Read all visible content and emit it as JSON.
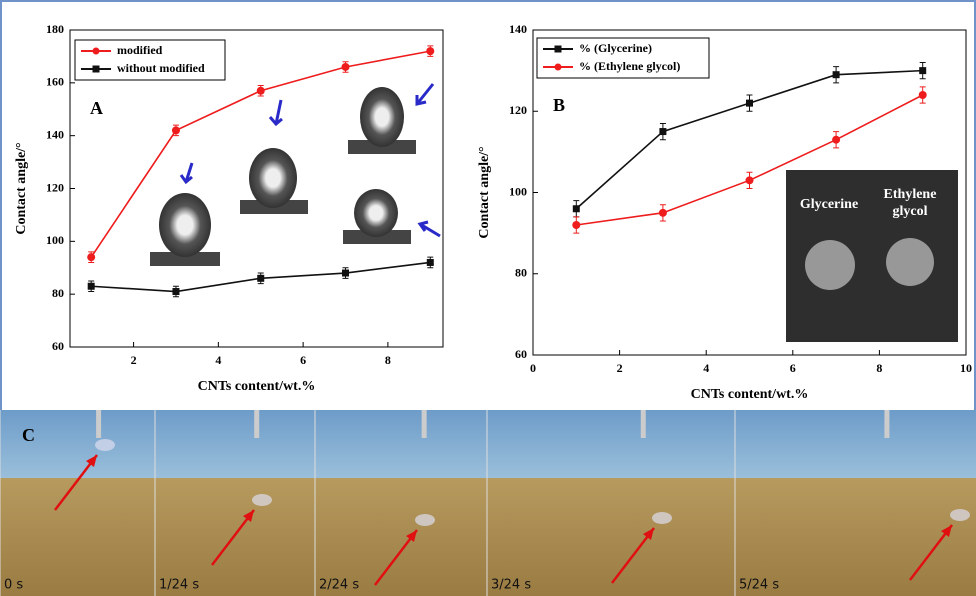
{
  "chart_data": [
    {
      "type": "line",
      "panel": "A",
      "xlabel": "CNTs content/wt.%",
      "ylabel": "Contact angle/°",
      "x": [
        1,
        3,
        5,
        7,
        9
      ],
      "xlim": [
        0.5,
        9.3
      ],
      "xticks": [
        2,
        4,
        6,
        8
      ],
      "ylim": [
        60,
        180
      ],
      "yticks": [
        60,
        80,
        100,
        120,
        140,
        160,
        180
      ],
      "legend": "upper left",
      "series": [
        {
          "name": "modified",
          "color": "#ee1c1c",
          "marker": "circle",
          "values": [
            94,
            142,
            157,
            166,
            172
          ],
          "errors": [
            2,
            2,
            2,
            2,
            2
          ]
        },
        {
          "name": "without modified",
          "color": "#111111",
          "marker": "square",
          "values": [
            83,
            81,
            86,
            88,
            92
          ],
          "errors": [
            2,
            2,
            2,
            2,
            2
          ]
        }
      ]
    },
    {
      "type": "line",
      "panel": "B",
      "xlabel": "CNTs content/wt.%",
      "ylabel": "Contact angle/°",
      "x": [
        1,
        3,
        5,
        7,
        9
      ],
      "xlim": [
        0,
        10
      ],
      "xticks": [
        0,
        2,
        4,
        6,
        8,
        10
      ],
      "ylim": [
        60,
        140
      ],
      "yticks": [
        60,
        80,
        100,
        120,
        140
      ],
      "legend": "upper left",
      "inset_labels": [
        "Glycerine",
        "Ethylene glycol"
      ],
      "series": [
        {
          "name": "% (Glycerine)",
          "color": "#111111",
          "marker": "square",
          "values": [
            96,
            115,
            122,
            129,
            130
          ],
          "errors": [
            2,
            2,
            2,
            2,
            2
          ]
        },
        {
          "name": "% (Ethylene glycol)",
          "color": "#ee1c1c",
          "marker": "circle",
          "values": [
            92,
            95,
            103,
            113,
            124
          ],
          "errors": [
            2,
            2,
            2,
            2,
            2
          ]
        }
      ]
    }
  ],
  "panel_c": {
    "label": "C",
    "frames": [
      "0 s",
      "1/24 s",
      "2/24 s",
      "3/24 s",
      "5/24 s"
    ]
  }
}
